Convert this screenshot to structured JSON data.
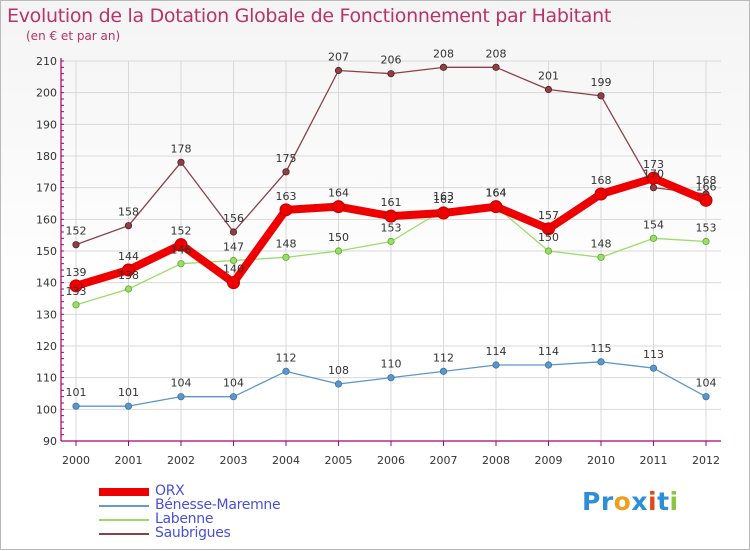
{
  "header": {
    "title": "Evolution de la Dotation Globale de Fonctionnement par Habitant",
    "subtitle": "(en € et par an)"
  },
  "colors": {
    "title": "#b8336a",
    "axis": "#a6006a",
    "legend_text": "#4a50d6",
    "grid": "#d9d9d9"
  },
  "legend": [
    {
      "label": "ORX",
      "color": "#ee0000"
    },
    {
      "label": "Bénesse-Maremne",
      "color": "#6699cc"
    },
    {
      "label": "Labenne",
      "color": "#99dd66"
    },
    {
      "label": "Saubrigues",
      "color": "#8b4148"
    }
  ],
  "logo": {
    "letters": [
      "P",
      "r",
      "o",
      "x",
      "i",
      "t",
      "i"
    ],
    "colors": [
      "#2e8fd8",
      "#2e8fd8",
      "#f0a020",
      "#2e8fd8",
      "#e04a1a",
      "#2e8fd8",
      "#8cc63e"
    ]
  },
  "chart_data": {
    "type": "line",
    "title": "Evolution de la Dotation Globale de Fonctionnement par Habitant",
    "subtitle": "(en € et par an)",
    "xlabel": "",
    "ylabel": "",
    "categories": [
      "2000",
      "2001",
      "2002",
      "2003",
      "2004",
      "2005",
      "2006",
      "2007",
      "2008",
      "2009",
      "2010",
      "2011",
      "2012"
    ],
    "ylim": [
      90,
      210
    ],
    "yticks": [
      90,
      100,
      110,
      120,
      130,
      140,
      150,
      160,
      170,
      180,
      190,
      200,
      210
    ],
    "grid": true,
    "series": [
      {
        "name": "Bénesse-Maremne",
        "color": "#5d96c8",
        "values": [
          101,
          101,
          104,
          104,
          112,
          108,
          110,
          112,
          114,
          114,
          115,
          113,
          104
        ]
      },
      {
        "name": "Labenne",
        "color": "#99dd66",
        "values": [
          133,
          138,
          146,
          147,
          148,
          150,
          153,
          163,
          164,
          150,
          148,
          154,
          153
        ]
      },
      {
        "name": "Saubrigues",
        "color": "#8b4148",
        "values": [
          152,
          158,
          178,
          156,
          175,
          207,
          206,
          208,
          208,
          201,
          199,
          170,
          168
        ]
      },
      {
        "name": "ORX",
        "color": "#ee0000",
        "values": [
          139,
          144,
          152,
          140,
          163,
          164,
          161,
          162,
          164,
          157,
          168,
          173,
          166
        ]
      }
    ]
  }
}
